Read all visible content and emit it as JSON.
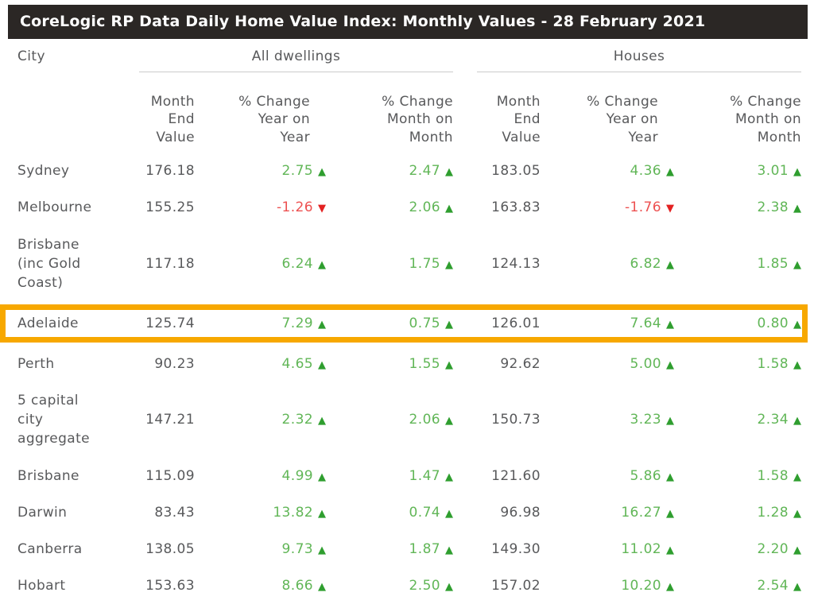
{
  "title": "CoreLogic RP Data Daily Home Value Index: Monthly Values - 28 February 2021",
  "colors": {
    "title_bar_bg": "#2b2725",
    "body_text": "#58595b",
    "positive_value": "#61b657",
    "positive_triangle": "#2f9e2f",
    "negative_value": "#ed5151",
    "negative_triangle": "#e32121",
    "highlight_border": "#f7a800",
    "underline": "#cbcbcb"
  },
  "icons": {
    "up": "▲",
    "down": "▼"
  },
  "table": {
    "city_header": "City",
    "groups": [
      {
        "label": "All dwellings"
      },
      {
        "label": "Houses"
      }
    ],
    "sub_headers": [
      "Month\nEnd\nValue",
      "% Change\nYear on\nYear",
      "% Change\nMonth on\nMonth",
      "Month\nEnd\nValue",
      "% Change\nYear on\nYear",
      "% Change\nMonth on\nMonth"
    ],
    "rows": [
      {
        "city": "Sydney",
        "highlight": false,
        "cells": [
          {
            "v": "176.18"
          },
          {
            "v": "2.75",
            "dir": "up"
          },
          {
            "v": "2.47",
            "dir": "up"
          },
          {
            "v": "183.05"
          },
          {
            "v": "4.36",
            "dir": "up"
          },
          {
            "v": "3.01",
            "dir": "up"
          }
        ]
      },
      {
        "city": "Melbourne",
        "highlight": false,
        "cells": [
          {
            "v": "155.25"
          },
          {
            "v": "-1.26",
            "dir": "down"
          },
          {
            "v": "2.06",
            "dir": "up"
          },
          {
            "v": "163.83"
          },
          {
            "v": "-1.76",
            "dir": "down"
          },
          {
            "v": "2.38",
            "dir": "up"
          }
        ]
      },
      {
        "city": "Brisbane\n(inc Gold\nCoast)",
        "highlight": false,
        "cells": [
          {
            "v": "117.18"
          },
          {
            "v": "6.24",
            "dir": "up"
          },
          {
            "v": "1.75",
            "dir": "up"
          },
          {
            "v": "124.13"
          },
          {
            "v": "6.82",
            "dir": "up"
          },
          {
            "v": "1.85",
            "dir": "up"
          }
        ]
      },
      {
        "city": "Adelaide",
        "highlight": true,
        "cells": [
          {
            "v": "125.74"
          },
          {
            "v": "7.29",
            "dir": "up"
          },
          {
            "v": "0.75",
            "dir": "up"
          },
          {
            "v": "126.01"
          },
          {
            "v": "7.64",
            "dir": "up"
          },
          {
            "v": "0.80",
            "dir": "up"
          }
        ]
      },
      {
        "city": "Perth",
        "highlight": false,
        "cells": [
          {
            "v": "90.23"
          },
          {
            "v": "4.65",
            "dir": "up"
          },
          {
            "v": "1.55",
            "dir": "up"
          },
          {
            "v": "92.62"
          },
          {
            "v": "5.00",
            "dir": "up"
          },
          {
            "v": "1.58",
            "dir": "up"
          }
        ]
      },
      {
        "city": "5 capital\ncity\naggregate",
        "highlight": false,
        "cells": [
          {
            "v": "147.21"
          },
          {
            "v": "2.32",
            "dir": "up"
          },
          {
            "v": "2.06",
            "dir": "up"
          },
          {
            "v": "150.73"
          },
          {
            "v": "3.23",
            "dir": "up"
          },
          {
            "v": "2.34",
            "dir": "up"
          }
        ]
      },
      {
        "city": "Brisbane",
        "highlight": false,
        "cells": [
          {
            "v": "115.09"
          },
          {
            "v": "4.99",
            "dir": "up"
          },
          {
            "v": "1.47",
            "dir": "up"
          },
          {
            "v": "121.60"
          },
          {
            "v": "5.86",
            "dir": "up"
          },
          {
            "v": "1.58",
            "dir": "up"
          }
        ]
      },
      {
        "city": "Darwin",
        "highlight": false,
        "cells": [
          {
            "v": "83.43"
          },
          {
            "v": "13.82",
            "dir": "up"
          },
          {
            "v": "0.74",
            "dir": "up"
          },
          {
            "v": "96.98"
          },
          {
            "v": "16.27",
            "dir": "up"
          },
          {
            "v": "1.28",
            "dir": "up"
          }
        ]
      },
      {
        "city": "Canberra",
        "highlight": false,
        "cells": [
          {
            "v": "138.05"
          },
          {
            "v": "9.73",
            "dir": "up"
          },
          {
            "v": "1.87",
            "dir": "up"
          },
          {
            "v": "149.30"
          },
          {
            "v": "11.02",
            "dir": "up"
          },
          {
            "v": "2.20",
            "dir": "up"
          }
        ]
      },
      {
        "city": "Hobart",
        "highlight": false,
        "cells": [
          {
            "v": "153.63"
          },
          {
            "v": "8.66",
            "dir": "up"
          },
          {
            "v": "2.50",
            "dir": "up"
          },
          {
            "v": "157.02"
          },
          {
            "v": "10.20",
            "dir": "up"
          },
          {
            "v": "2.54",
            "dir": "up"
          }
        ]
      }
    ]
  },
  "chart_data": {
    "type": "table",
    "title": "CoreLogic RP Data Daily Home Value Index: Monthly Values - 28 February 2021",
    "column_groups": [
      "All dwellings",
      "Houses"
    ],
    "columns": [
      "City",
      "All dwellings Month End Value",
      "All dwellings % Change Year on Year",
      "All dwellings % Change Month on Month",
      "Houses Month End Value",
      "Houses % Change Year on Year",
      "Houses % Change Month on Month"
    ],
    "rows": [
      [
        "Sydney",
        176.18,
        2.75,
        2.47,
        183.05,
        4.36,
        3.01
      ],
      [
        "Melbourne",
        155.25,
        -1.26,
        2.06,
        163.83,
        -1.76,
        2.38
      ],
      [
        "Brisbane (inc Gold Coast)",
        117.18,
        6.24,
        1.75,
        124.13,
        6.82,
        1.85
      ],
      [
        "Adelaide",
        125.74,
        7.29,
        0.75,
        126.01,
        7.64,
        0.8
      ],
      [
        "Perth",
        90.23,
        4.65,
        1.55,
        92.62,
        5.0,
        1.58
      ],
      [
        "5 capital city aggregate",
        147.21,
        2.32,
        2.06,
        150.73,
        3.23,
        2.34
      ],
      [
        "Brisbane",
        115.09,
        4.99,
        1.47,
        121.6,
        5.86,
        1.58
      ],
      [
        "Darwin",
        83.43,
        13.82,
        0.74,
        96.98,
        16.27,
        1.28
      ],
      [
        "Canberra",
        138.05,
        9.73,
        1.87,
        149.3,
        11.02,
        2.2
      ],
      [
        "Hobart",
        153.63,
        8.66,
        2.5,
        157.02,
        10.2,
        2.54
      ]
    ],
    "highlighted_row": "Adelaide",
    "notes": "Positive % changes shown in green with up triangle, negative in red with down triangle"
  }
}
